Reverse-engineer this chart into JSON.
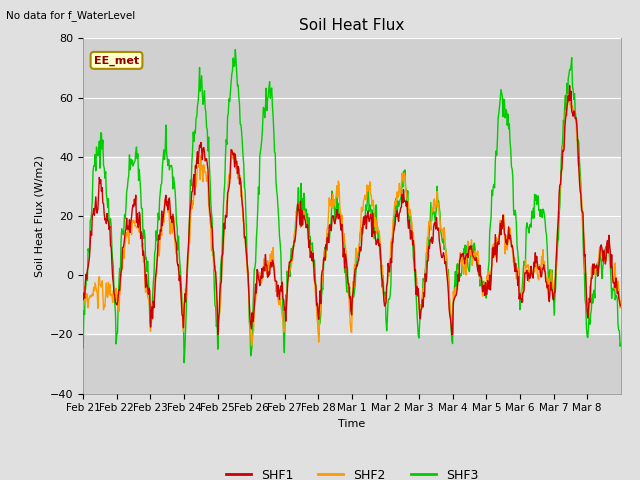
{
  "title": "Soil Heat Flux",
  "ylabel": "Soil Heat Flux (W/m2)",
  "xlabel": "Time",
  "note": "No data for f_WaterLevel",
  "station_label": "EE_met",
  "ylim": [
    -40,
    80
  ],
  "yticks": [
    -40,
    -20,
    0,
    20,
    40,
    60,
    80
  ],
  "shaded_region": [
    -20,
    40
  ],
  "line_colors": {
    "SHF1": "#cc0000",
    "SHF2": "#ff9900",
    "SHF3": "#00cc00"
  },
  "line_widths": {
    "SHF1": 1.0,
    "SHF2": 1.0,
    "SHF3": 1.0
  },
  "bg_color": "#e0e0e0",
  "plot_bg_color": "#d0d0d0",
  "shaded_color": "#c8c8c8",
  "x_labels": [
    "Feb 21",
    "Feb 22",
    "Feb 23",
    "Feb 24",
    "Feb 25",
    "Feb 26",
    "Feb 27",
    "Feb 28",
    "Mar 1",
    "Mar 2",
    "Mar 3",
    "Mar 4",
    "Mar 5",
    "Mar 6",
    "Mar 7",
    "Mar 8"
  ],
  "figsize": [
    6.4,
    4.8
  ],
  "dpi": 100
}
